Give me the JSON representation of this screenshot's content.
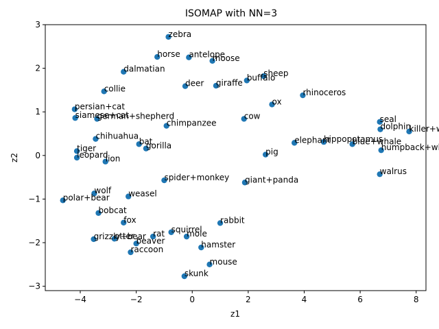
{
  "chart_data": {
    "type": "scatter",
    "title": "ISOMAP with NN=3",
    "xlabel": "z1",
    "ylabel": "z2",
    "xlim": [
      -5.25,
      8.35
    ],
    "ylim": [
      -3.1,
      3.0
    ],
    "xticks": [
      -4,
      -2,
      0,
      2,
      4,
      6,
      8
    ],
    "yticks": [
      -3,
      -2,
      -1,
      0,
      1,
      2,
      3
    ],
    "marker_color": "#1f77b4",
    "grid": false,
    "points": [
      {
        "label": "zebra",
        "x": -0.85,
        "y": 2.72
      },
      {
        "label": "horse",
        "x": -1.25,
        "y": 2.26
      },
      {
        "label": "antelope",
        "x": -0.12,
        "y": 2.25
      },
      {
        "label": "moose",
        "x": 0.72,
        "y": 2.17
      },
      {
        "label": "dalmatian",
        "x": -2.45,
        "y": 1.92
      },
      {
        "label": "sheep",
        "x": 2.55,
        "y": 1.82
      },
      {
        "label": "buffalo",
        "x": 1.95,
        "y": 1.72
      },
      {
        "label": "deer",
        "x": -0.25,
        "y": 1.59
      },
      {
        "label": "giraffe",
        "x": 0.85,
        "y": 1.6
      },
      {
        "label": "collie",
        "x": -3.15,
        "y": 1.47
      },
      {
        "label": "rhinoceros",
        "x": 3.95,
        "y": 1.38
      },
      {
        "label": "ox",
        "x": 2.85,
        "y": 1.17
      },
      {
        "label": "persian+cat",
        "x": -4.2,
        "y": 1.06
      },
      {
        "label": "siamese+cat",
        "x": -4.18,
        "y": 0.86
      },
      {
        "label": "german+shepherd",
        "x": -3.4,
        "y": 0.84
      },
      {
        "label": "cow",
        "x": 1.85,
        "y": 0.84
      },
      {
        "label": "chimpanzee",
        "x": -0.92,
        "y": 0.68
      },
      {
        "label": "seal",
        "x": 6.7,
        "y": 0.77
      },
      {
        "label": "dolphin",
        "x": 6.72,
        "y": 0.6
      },
      {
        "label": "killer+whale",
        "x": 7.75,
        "y": 0.55
      },
      {
        "label": "chihuahua",
        "x": -3.45,
        "y": 0.38
      },
      {
        "label": "hippopotamus",
        "x": 4.7,
        "y": 0.31
      },
      {
        "label": "elephant",
        "x": 3.65,
        "y": 0.29
      },
      {
        "label": "blue+whale",
        "x": 5.72,
        "y": 0.26
      },
      {
        "label": "bat",
        "x": -1.9,
        "y": 0.26
      },
      {
        "label": "gorilla",
        "x": -1.65,
        "y": 0.16
      },
      {
        "label": "humpback+whale",
        "x": 6.75,
        "y": 0.12
      },
      {
        "label": "tiger",
        "x": -4.12,
        "y": 0.1
      },
      {
        "label": "pig",
        "x": 2.62,
        "y": 0.02
      },
      {
        "label": "leopard",
        "x": -4.12,
        "y": -0.05
      },
      {
        "label": "lion",
        "x": -3.1,
        "y": -0.14
      },
      {
        "label": "walrus",
        "x": 6.7,
        "y": -0.43
      },
      {
        "label": "spider+monkey",
        "x": -1.0,
        "y": -0.57
      },
      {
        "label": "giant+panda",
        "x": 1.88,
        "y": -0.62
      },
      {
        "label": "wolf",
        "x": -3.5,
        "y": -0.87
      },
      {
        "label": "weasel",
        "x": -2.28,
        "y": -0.94
      },
      {
        "label": "polar+bear",
        "x": -4.62,
        "y": -1.03
      },
      {
        "label": "bobcat",
        "x": -3.35,
        "y": -1.32
      },
      {
        "label": "fox",
        "x": -2.45,
        "y": -1.54
      },
      {
        "label": "rabbit",
        "x": 1.0,
        "y": -1.55
      },
      {
        "label": "squirrel",
        "x": -0.75,
        "y": -1.76
      },
      {
        "label": "mole",
        "x": -0.2,
        "y": -1.86
      },
      {
        "label": "rat",
        "x": -1.4,
        "y": -1.86
      },
      {
        "label": "grizzly+bear",
        "x": -3.52,
        "y": -1.92
      },
      {
        "label": "otter",
        "x": -2.78,
        "y": -1.91
      },
      {
        "label": "beaver",
        "x": -2.0,
        "y": -2.02
      },
      {
        "label": "hamster",
        "x": 0.32,
        "y": -2.11
      },
      {
        "label": "raccoon",
        "x": -2.2,
        "y": -2.22
      },
      {
        "label": "mouse",
        "x": 0.62,
        "y": -2.5
      },
      {
        "label": "skunk",
        "x": -0.28,
        "y": -2.77
      }
    ]
  }
}
